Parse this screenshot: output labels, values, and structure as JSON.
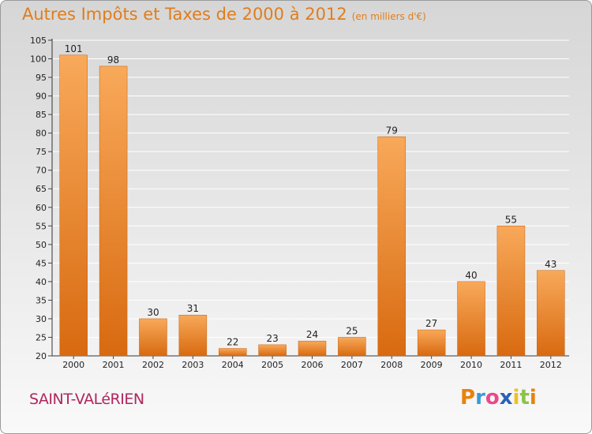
{
  "title": "Autres Impôts et Taxes de 2000 à 2012",
  "subtitle": "(en milliers d'€)",
  "town": "SAINT-VALéRIEN",
  "logo": {
    "text": "Proxiti",
    "colors": [
      "#e8820c",
      "#3a9ad9",
      "#e84a8a",
      "#2a62b8",
      "#f0c020",
      "#8bc34a",
      "#e8820c"
    ]
  },
  "colors": {
    "bar_light": "#f8a95a",
    "bar_dark": "#d86a10",
    "title": "#e07d1c",
    "town": "#b0265c"
  },
  "chart_data": {
    "type": "bar",
    "title": "Autres Impôts et Taxes de 2000 à 2012",
    "subtitle": "(en milliers d'€)",
    "categories": [
      "2000",
      "2001",
      "2002",
      "2003",
      "2004",
      "2005",
      "2006",
      "2007",
      "2008",
      "2009",
      "2010",
      "2011",
      "2012"
    ],
    "values": [
      101,
      98,
      30,
      31,
      22,
      23,
      24,
      25,
      79,
      27,
      40,
      55,
      43
    ],
    "ylim": [
      20,
      105
    ],
    "yticks": [
      20,
      25,
      30,
      35,
      40,
      45,
      50,
      55,
      60,
      65,
      70,
      75,
      80,
      85,
      90,
      95,
      100,
      105
    ],
    "grid": true,
    "xlabel": "",
    "ylabel": ""
  }
}
